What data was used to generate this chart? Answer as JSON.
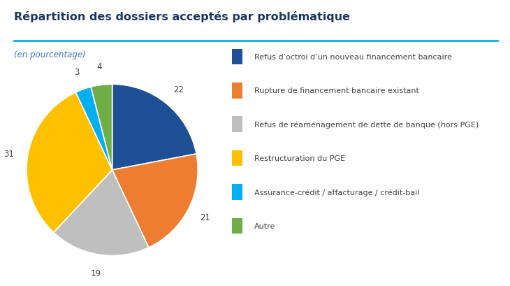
{
  "title": "Répartition des dossiers acceptés par problématique",
  "subtitle": "(en pourcentage)",
  "title_color": "#1a3560",
  "subtitle_color": "#4472c4",
  "line_color": "#00b0f0",
  "background_color": "#ffffff",
  "slices": [
    22,
    21,
    19,
    31,
    3,
    4
  ],
  "slice_colors": [
    "#1f5096",
    "#ed7d31",
    "#bfbfbf",
    "#ffc000",
    "#00b0f0",
    "#70ad47"
  ],
  "legend_labels": [
    "Refus d’octroi d’un nouveau financement bancaire",
    "Rupture de financement bancaire existant",
    "Refus de réaménagement de dette de banque (hors PGE)",
    "Restructuration du PGE",
    "Assurance-crédit / affacturage / crédit-bail",
    "Autre"
  ],
  "startangle": 90,
  "fig_width": 7.3,
  "fig_height": 4.1,
  "dpi": 100
}
